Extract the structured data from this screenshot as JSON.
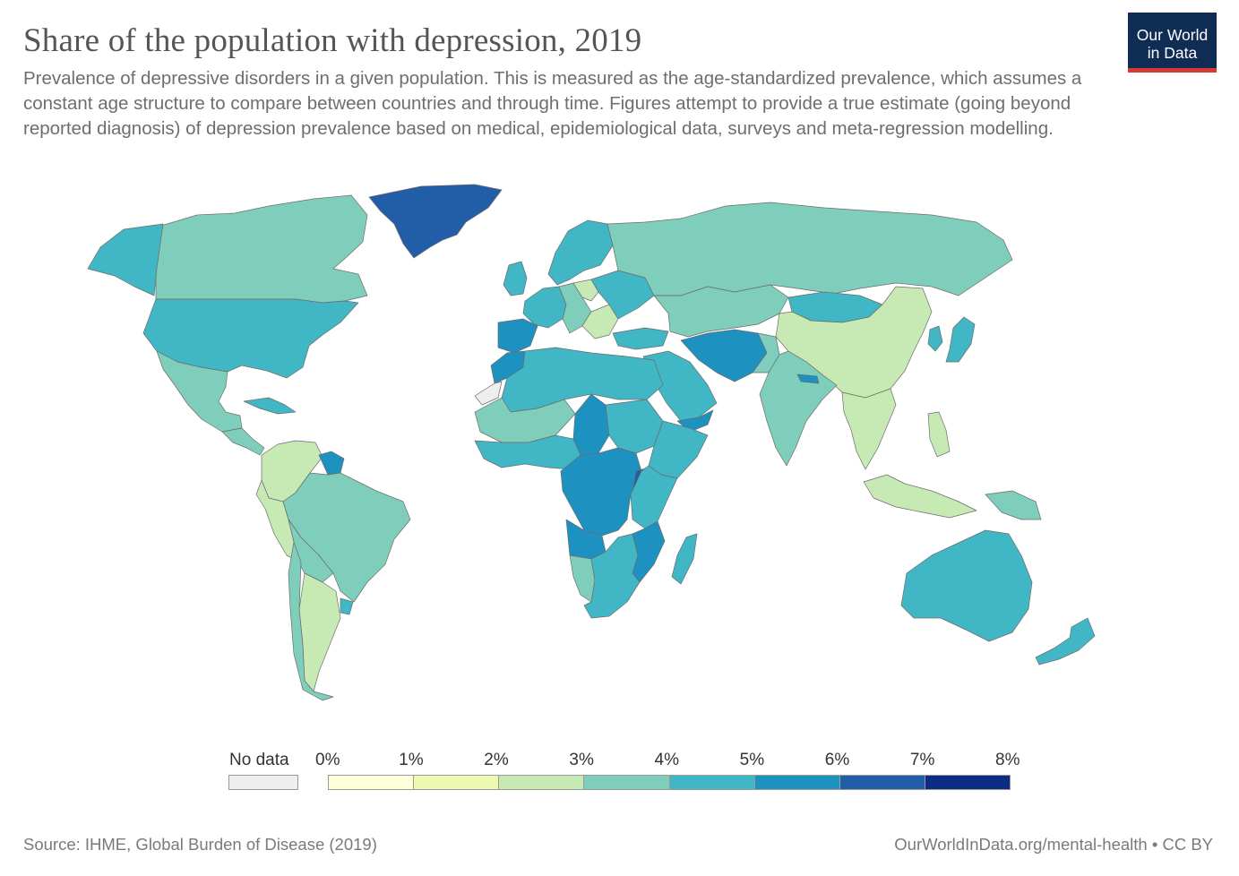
{
  "header": {
    "title": "Share of the population with depression, 2019",
    "subtitle": "Prevalence of depressive disorders in a given population. This is measured as the age-standardized prevalence, which assumes a constant age structure to compare between countries and through time. Figures attempt to provide a true estimate (going beyond reported diagnosis) of depression prevalence based on medical, epidemiological data, surveys and meta-regression modelling."
  },
  "logo": {
    "line1": "Our World",
    "line2": "in Data",
    "bg_color": "#0f2c55",
    "accent_color": "#d73a32"
  },
  "legend": {
    "no_data_label": "No data",
    "no_data_color": "#eeeeee",
    "bins": [
      {
        "label": "0%",
        "color": "#ffffd9"
      },
      {
        "label": "1%",
        "color": "#edf8b1"
      },
      {
        "label": "2%",
        "color": "#c7e9b4"
      },
      {
        "label": "3%",
        "color": "#7fcdbb"
      },
      {
        "label": "4%",
        "color": "#41b6c4"
      },
      {
        "label": "5%",
        "color": "#1d91c0"
      },
      {
        "label": "6%",
        "color": "#225ea8"
      },
      {
        "label": "7%",
        "color": "#0c2c84"
      }
    ],
    "last_label": "8%"
  },
  "map_regions": [
    {
      "name": "greenland",
      "color": "#225ea8"
    },
    {
      "name": "alaska",
      "color": "#41b6c4"
    },
    {
      "name": "canada",
      "color": "#7fcdbb"
    },
    {
      "name": "usa",
      "color": "#41b6c4"
    },
    {
      "name": "mexico",
      "color": "#7fcdbb"
    },
    {
      "name": "central-america",
      "color": "#7fcdbb"
    },
    {
      "name": "caribbean",
      "color": "#41b6c4"
    },
    {
      "name": "colombia-venezuela",
      "color": "#c7e9b4"
    },
    {
      "name": "guyana-suriname",
      "color": "#1d91c0"
    },
    {
      "name": "peru-ecuador",
      "color": "#c7e9b4"
    },
    {
      "name": "brazil",
      "color": "#7fcdbb"
    },
    {
      "name": "bolivia-paraguay",
      "color": "#7fcdbb"
    },
    {
      "name": "argentina",
      "color": "#c7e9b4"
    },
    {
      "name": "chile",
      "color": "#7fcdbb"
    },
    {
      "name": "uruguay",
      "color": "#41b6c4"
    },
    {
      "name": "uk-ireland",
      "color": "#41b6c4"
    },
    {
      "name": "iberia",
      "color": "#1d91c0"
    },
    {
      "name": "western-europe",
      "color": "#41b6c4"
    },
    {
      "name": "central-europe",
      "color": "#7fcdbb"
    },
    {
      "name": "poland",
      "color": "#c7e9b4"
    },
    {
      "name": "scandinavia",
      "color": "#41b6c4"
    },
    {
      "name": "balkans",
      "color": "#c7e9b4"
    },
    {
      "name": "eastern-europe",
      "color": "#41b6c4"
    },
    {
      "name": "russia",
      "color": "#7fcdbb"
    },
    {
      "name": "turkey",
      "color": "#41b6c4"
    },
    {
      "name": "central-asia",
      "color": "#7fcdbb"
    },
    {
      "name": "mongolia",
      "color": "#41b6c4"
    },
    {
      "name": "china",
      "color": "#c7e9b4"
    },
    {
      "name": "korea",
      "color": "#41b6c4"
    },
    {
      "name": "japan",
      "color": "#41b6c4"
    },
    {
      "name": "iran-afghanistan",
      "color": "#1d91c0"
    },
    {
      "name": "pakistan",
      "color": "#7fcdbb"
    },
    {
      "name": "arabia",
      "color": "#41b6c4"
    },
    {
      "name": "yemen",
      "color": "#1d91c0"
    },
    {
      "name": "india",
      "color": "#7fcdbb"
    },
    {
      "name": "nepal",
      "color": "#1d91c0"
    },
    {
      "name": "southeast-asia",
      "color": "#c7e9b4"
    },
    {
      "name": "philippines",
      "color": "#c7e9b4"
    },
    {
      "name": "indonesia",
      "color": "#c7e9b4"
    },
    {
      "name": "png",
      "color": "#7fcdbb"
    },
    {
      "name": "australia",
      "color": "#41b6c4"
    },
    {
      "name": "new-zealand",
      "color": "#41b6c4"
    },
    {
      "name": "north-africa",
      "color": "#41b6c4"
    },
    {
      "name": "morocco",
      "color": "#1d91c0"
    },
    {
      "name": "western-sahara",
      "color": "#eeeeee"
    },
    {
      "name": "west-africa",
      "color": "#41b6c4"
    },
    {
      "name": "sahel",
      "color": "#7fcdbb"
    },
    {
      "name": "chad",
      "color": "#1d91c0"
    },
    {
      "name": "sudan",
      "color": "#41b6c4"
    },
    {
      "name": "ethiopia-horn",
      "color": "#41b6c4"
    },
    {
      "name": "central-africa",
      "color": "#1d91c0"
    },
    {
      "name": "uganda",
      "color": "#225ea8"
    },
    {
      "name": "east-africa",
      "color": "#41b6c4"
    },
    {
      "name": "angola",
      "color": "#1d91c0"
    },
    {
      "name": "mozambique",
      "color": "#1d91c0"
    },
    {
      "name": "namibia",
      "color": "#7fcdbb"
    },
    {
      "name": "southern-africa",
      "color": "#41b6c4"
    },
    {
      "name": "madagascar",
      "color": "#41b6c4"
    }
  ],
  "footer": {
    "source": "Source: IHME, Global Burden of Disease (2019)",
    "credit": "OurWorldInData.org/mental-health • CC BY"
  }
}
